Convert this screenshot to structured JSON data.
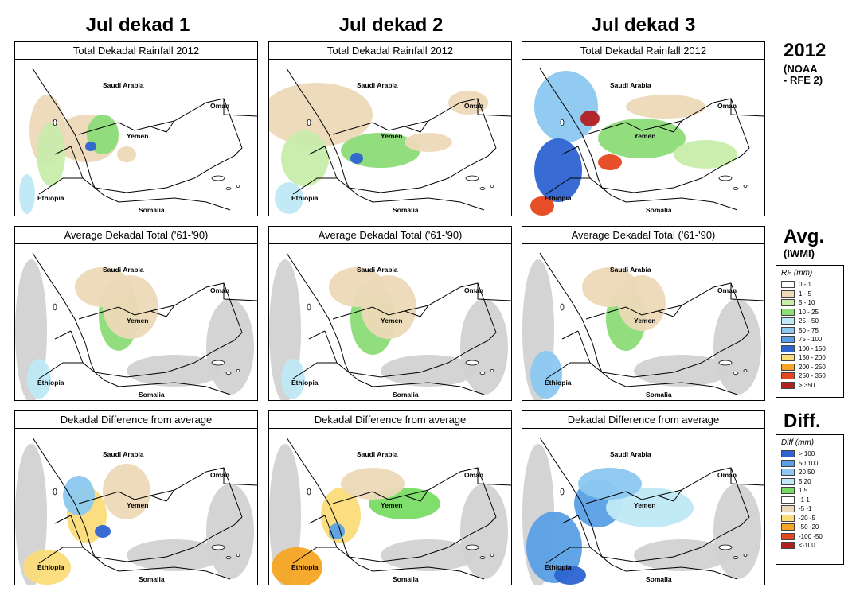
{
  "columns": [
    "Jul dekad 1",
    "Jul dekad 2",
    "Jul dekad 3"
  ],
  "row_titles": [
    "Total Dekadal Rainfall 2012",
    "Average Dekadal Total ('61-'90)",
    "Dekadal Difference from average"
  ],
  "side_labels": {
    "row1": {
      "main": "2012",
      "sub1": "(NOAA",
      "sub2": "- RFE 2)"
    },
    "row2": {
      "main": "Avg.",
      "sub1": "(IWMI)"
    },
    "row3": {
      "main": "Diff."
    }
  },
  "map_labels": {
    "saudi": "Saudi Arabia",
    "oman": "Oman",
    "yemen": "Yemen",
    "ethiopia": "Ethiopia",
    "somalia": "Somalia"
  },
  "rf_legend": {
    "title": "RF (mm)",
    "items": [
      {
        "label": "0 - 1",
        "color": "#ffffff"
      },
      {
        "label": "1 - 5",
        "color": "#ecd9b8"
      },
      {
        "label": "5 - 10",
        "color": "#c8ecaa"
      },
      {
        "label": "10 - 25",
        "color": "#8cdc78"
      },
      {
        "label": "25 - 50",
        "color": "#bfe9f6"
      },
      {
        "label": "50 - 75",
        "color": "#8cc8f0"
      },
      {
        "label": "75 - 100",
        "color": "#5aa0e6"
      },
      {
        "label": "100 - 150",
        "color": "#2d64d2"
      },
      {
        "label": "150 - 200",
        "color": "#fadc78"
      },
      {
        "label": "200 - 250",
        "color": "#f5a523"
      },
      {
        "label": "250 - 350",
        "color": "#e6461e"
      },
      {
        "label": "> 350",
        "color": "#b41e1e"
      }
    ]
  },
  "diff_legend": {
    "title": "Diff (mm)",
    "items": [
      {
        "label": "> 100",
        "color": "#2d64d2"
      },
      {
        "label": "50  100",
        "color": "#5aa0e6"
      },
      {
        "label": "20  50",
        "color": "#8cc8f0"
      },
      {
        "label": "5  20",
        "color": "#bfe9f6"
      },
      {
        "label": "1  5",
        "color": "#78dc64"
      },
      {
        "label": "-1  1",
        "color": "#ffffff"
      },
      {
        "label": "-5  -1",
        "color": "#ecd9b8"
      },
      {
        "label": "-20  -5",
        "color": "#fadc78"
      },
      {
        "label": "-50  -20",
        "color": "#f5a523"
      },
      {
        "label": "-100  -50",
        "color": "#e6461e"
      },
      {
        "label": "<-100",
        "color": "#b41e1e"
      }
    ]
  }
}
